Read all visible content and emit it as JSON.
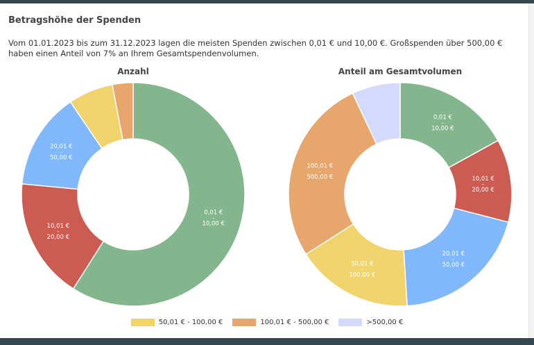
{
  "header": {
    "title": "Betragshöhe der Spenden",
    "description": "Vom 01.01.2023 bis zum 31.12.2023 lagen die meisten Spenden zwischen 0,01 € und 10,00 €. Großspenden über 500,00 € haben einen Anteil von 7% an Ihrem Gesamtspendenvolumen."
  },
  "categories": [
    "0,01 € - 10,00 €",
    "10,01 € - 20,00 €",
    "20,01 € - 50,00 €",
    "50,01 € - 100,00 €",
    "100,01 € - 500,00 €",
    ">500,00 €"
  ],
  "colors": [
    "#84b68e",
    "#cc5b52",
    "#80b8fb",
    "#f0d46b",
    "#e7a66b",
    "#d3dafd"
  ],
  "chart_data": [
    {
      "type": "pie",
      "variant": "donut",
      "title": "Anzahl",
      "categories": [
        "0,01 € - 10,00 €",
        "10,01 € - 20,00 €",
        "20,01 € - 50,00 €",
        "50,01 € - 100,00 €",
        "100,01 € - 500,00 €",
        ">500,00 €"
      ],
      "values": [
        59,
        17.5,
        14,
        6.5,
        3,
        0
      ],
      "unit": "%",
      "labels": [
        {
          "line1": "0,01 €",
          "line2": "-",
          "line3": "10,00 €"
        },
        {
          "line1": "10,01 €",
          "line2": "-",
          "line3": "20,00 €"
        },
        {
          "line1": "20,01 €",
          "line2": "-",
          "line3": "50,00 €"
        }
      ]
    },
    {
      "type": "pie",
      "variant": "donut",
      "title": "Anteil am Gesamtvolumen",
      "categories": [
        "0,01 € - 10,00 €",
        "10,01 € - 20,00 €",
        "20,01 € - 50,00 €",
        "50,01 € - 100,00 €",
        "100,01 € - 500,00 €",
        ">500,00 €"
      ],
      "values": [
        17,
        12,
        20,
        17,
        27,
        7
      ],
      "unit": "%",
      "labels": [
        {
          "line1": "0,01 €",
          "line2": "-",
          "line3": "10,00 €"
        },
        {
          "line1": "10,01 €",
          "line2": "-",
          "line3": "20,00 €"
        },
        {
          "line1": "20,01 €",
          "line2": "-",
          "line3": "50,00 €"
        },
        {
          "line1": "50,01 €",
          "line2": "-",
          "line3": "100,00 €"
        },
        {
          "line1": "100,01 €",
          "line2": "-",
          "line3": "500,00 €"
        }
      ]
    }
  ],
  "legend": [
    {
      "label": "50,01 € - 100,00 €",
      "color": "#f0d46b"
    },
    {
      "label": "100,01 € - 500,00 €",
      "color": "#e7a66b"
    },
    {
      "label": ">500,00 €",
      "color": "#d3dafd"
    }
  ]
}
